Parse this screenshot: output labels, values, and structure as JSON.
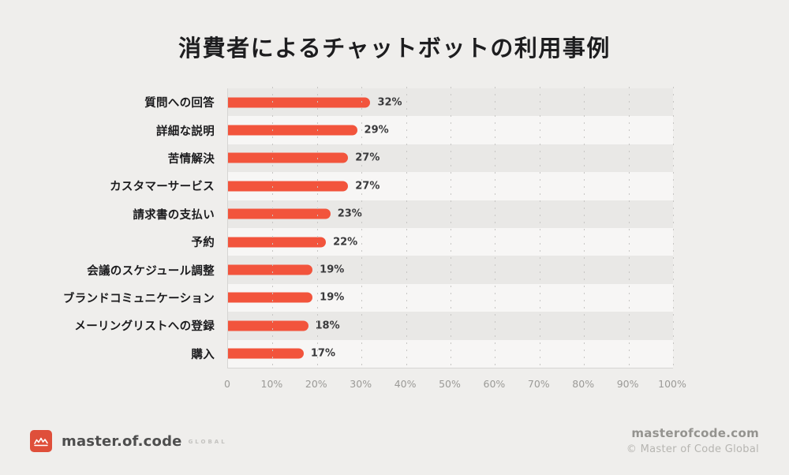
{
  "title": "消費者によるチャットボットの利用事例",
  "chart_data": {
    "type": "bar",
    "orientation": "horizontal",
    "title": "消費者によるチャットボットの利用事例",
    "categories": [
      "質問への回答",
      "詳細な説明",
      "苦情解決",
      "カスタマーサービス",
      "請求書の支払い",
      "予約",
      "会議のスケジュール調整",
      "ブランドコミュニケーション",
      "メーリングリストへの登録",
      "購入"
    ],
    "values": [
      32,
      29,
      27,
      27,
      23,
      22,
      19,
      19,
      18,
      17
    ],
    "value_labels": [
      "32%",
      "29%",
      "27%",
      "27%",
      "23%",
      "22%",
      "19%",
      "19%",
      "18%",
      "17%"
    ],
    "xlabel": "",
    "ylabel": "",
    "xlim": [
      0,
      100
    ],
    "x_ticks": [
      "0",
      "10%",
      "20%",
      "30%",
      "40%",
      "50%",
      "60%",
      "70%",
      "80%",
      "90%",
      "100%"
    ],
    "grid": "vertical-dotted",
    "legend": "none",
    "bar_color": "#f2543c",
    "row_stripe_colors": [
      "#e9e8e6",
      "#f7f6f5"
    ]
  },
  "footer": {
    "logo_text": "master.of.code",
    "logo_suffix": "GLOBAL",
    "website": "masterofcode.com",
    "copyright": "© Master of Code Global"
  }
}
